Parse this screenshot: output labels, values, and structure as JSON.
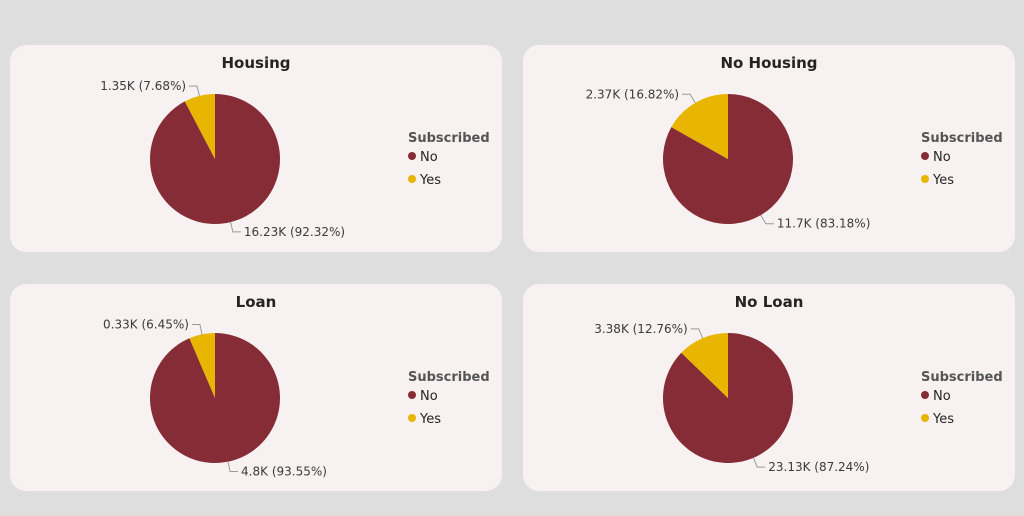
{
  "legend_title": "Subscribed",
  "colors": {
    "No": "#862c37",
    "Yes": "#e8b500"
  },
  "chart_data": [
    {
      "type": "pie",
      "title": "Housing",
      "legend": "right",
      "slices": [
        {
          "label": "No",
          "value": 16230,
          "percent": 92.32,
          "data_label": "16.23K (92.32%)"
        },
        {
          "label": "Yes",
          "value": 1350,
          "percent": 7.68,
          "data_label": "1.35K (7.68%)"
        }
      ]
    },
    {
      "type": "pie",
      "title": "No Housing",
      "legend": "right",
      "slices": [
        {
          "label": "No",
          "value": 11700,
          "percent": 83.18,
          "data_label": "11.7K (83.18%)"
        },
        {
          "label": "Yes",
          "value": 2370,
          "percent": 16.82,
          "data_label": "2.37K (16.82%)"
        }
      ]
    },
    {
      "type": "pie",
      "title": "Loan",
      "legend": "right",
      "slices": [
        {
          "label": "No",
          "value": 4800,
          "percent": 93.55,
          "data_label": "4.8K (93.55%)"
        },
        {
          "label": "Yes",
          "value": 330,
          "percent": 6.45,
          "data_label": "0.33K (6.45%)"
        }
      ]
    },
    {
      "type": "pie",
      "title": "No Loan",
      "legend": "right",
      "slices": [
        {
          "label": "No",
          "value": 23130,
          "percent": 87.24,
          "data_label": "23.13K (87.24%)"
        },
        {
          "label": "Yes",
          "value": 3380,
          "percent": 12.76,
          "data_label": "3.38K (12.76%)"
        }
      ]
    }
  ]
}
